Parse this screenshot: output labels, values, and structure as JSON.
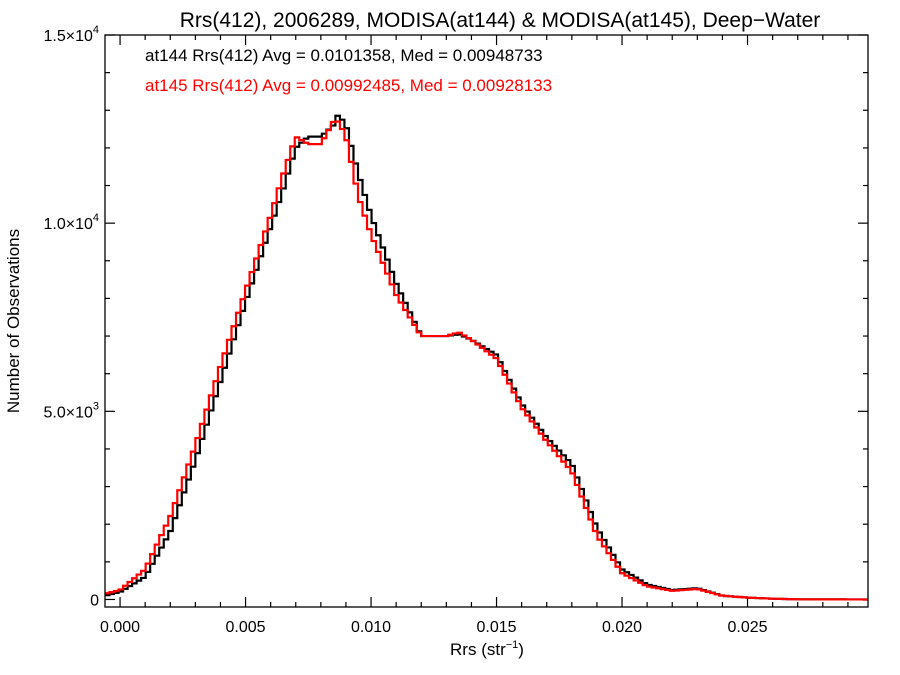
{
  "chart_data": {
    "type": "line",
    "step": true,
    "title": "Rrs(412), 2006289, MODISA(at144) & MODISA(at145), Deep−Water",
    "xlabel": "Rrs (str",
    "xlabel_sup": "−1",
    "xlabel_suffix": ")",
    "ylabel": "Number of Observations",
    "xlim": [
      -0.0006,
      0.0298
    ],
    "ylim": [
      -200,
      15000
    ],
    "x_ticks": [
      0.0,
      0.005,
      0.01,
      0.015,
      0.02,
      0.025
    ],
    "x_tick_labels": [
      "0.000",
      "0.005",
      "0.010",
      "0.015",
      "0.020",
      "0.025"
    ],
    "y_ticks": [
      {
        "value": 0,
        "mant": "0",
        "exp": ""
      },
      {
        "value": 5000,
        "mant": "5.0×10",
        "exp": "3"
      },
      {
        "value": 10000,
        "mant": "1.0×10",
        "exp": "4"
      },
      {
        "value": 15000,
        "mant": "1.5×10",
        "exp": "4"
      }
    ],
    "grid": false,
    "annotations": [
      {
        "text": "at144 Rrs(412) Avg = 0.0101358, Med = 0.00948733",
        "color": "#000000"
      },
      {
        "text": "at145 Rrs(412) Avg = 0.00992485, Med = 0.00928133",
        "color": "#ff0000"
      }
    ],
    "x": [
      -0.0006,
      0.0,
      0.001,
      0.002,
      0.003,
      0.004,
      0.005,
      0.006,
      0.0065,
      0.007,
      0.0075,
      0.008,
      0.0085,
      0.0087,
      0.009,
      0.0095,
      0.01,
      0.011,
      0.012,
      0.013,
      0.0135,
      0.014,
      0.015,
      0.016,
      0.017,
      0.018,
      0.019,
      0.02,
      0.021,
      0.022,
      0.023,
      0.024,
      0.025,
      0.026,
      0.027,
      0.0298
    ],
    "series": [
      {
        "name": "at144",
        "color": "#000000",
        "values": [
          100,
          200,
          600,
          1800,
          3700,
          5800,
          7900,
          9900,
          10900,
          12000,
          12300,
          12300,
          12600,
          12900,
          12600,
          11300,
          10200,
          8400,
          7000,
          7000,
          7050,
          6900,
          6500,
          5200,
          4300,
          3600,
          1900,
          800,
          400,
          250,
          300,
          100,
          50,
          20,
          5,
          0
        ]
      },
      {
        "name": "at145",
        "color": "#ff0000",
        "values": [
          150,
          250,
          800,
          2200,
          4100,
          6200,
          8200,
          10200,
          11300,
          12300,
          12100,
          12100,
          12700,
          12700,
          12300,
          10700,
          9700,
          8100,
          7000,
          7000,
          7100,
          6900,
          6400,
          5100,
          4200,
          3400,
          1700,
          700,
          350,
          230,
          280,
          100,
          50,
          20,
          5,
          0
        ]
      }
    ]
  }
}
